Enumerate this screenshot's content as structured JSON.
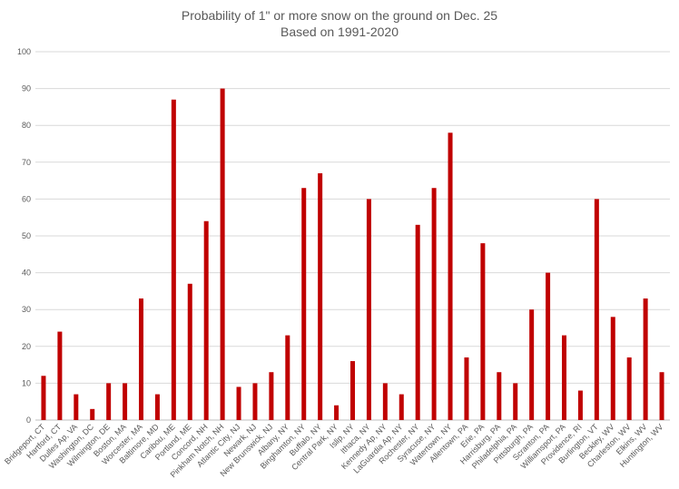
{
  "chart_data": {
    "type": "bar",
    "title": "Probability of 1\" or more snow on the ground on Dec. 25",
    "subtitle": "Based on 1991-2020",
    "xlabel": "",
    "ylabel": "",
    "ylim": [
      0,
      100
    ],
    "yticks": [
      0,
      10,
      20,
      30,
      40,
      50,
      60,
      70,
      80,
      90,
      100
    ],
    "grid": true,
    "color": "#c00000",
    "categories": [
      "Bridgeport, CT",
      "Hartford, CT",
      "Dulles Ap, VA",
      "Washington, DC",
      "Wilmington, DE",
      "Boston, MA",
      "Worcester, MA",
      "Baltimore, MD",
      "Caribou, ME",
      "Portland, ME",
      "Concord, NH",
      "Pinkham Notch, NH",
      "Atlantic City, NJ",
      "Newark, NJ",
      "New Brunswick, NJ",
      "Albany, NY",
      "Binghamton, NY",
      "Buffalo, NY",
      "Central Park, NY",
      "Islip, NY",
      "Ithaca, NY",
      "Kennedy Ap, NY",
      "LaGuardia Ap, NY",
      "Rochester, NY",
      "Syracuse, NY",
      "Watertown, NY",
      "Allentown, PA",
      "Erie, PA",
      "Harrisburg, PA",
      "Philadelphia, PA",
      "Pittsburgh, PA",
      "Scranton, PA",
      "Williamsport, PA",
      "Providence, RI",
      "Burlington, VT",
      "Beckley, WV",
      "Charleston, WV",
      "Elkins, WV",
      "Huntington, WV"
    ],
    "values": [
      12,
      24,
      7,
      3,
      10,
      10,
      33,
      7,
      87,
      37,
      54,
      90,
      9,
      10,
      13,
      23,
      63,
      67,
      4,
      16,
      60,
      10,
      7,
      53,
      63,
      78,
      17,
      48,
      13,
      10,
      30,
      40,
      23,
      8,
      60,
      28,
      17,
      33,
      13
    ]
  }
}
